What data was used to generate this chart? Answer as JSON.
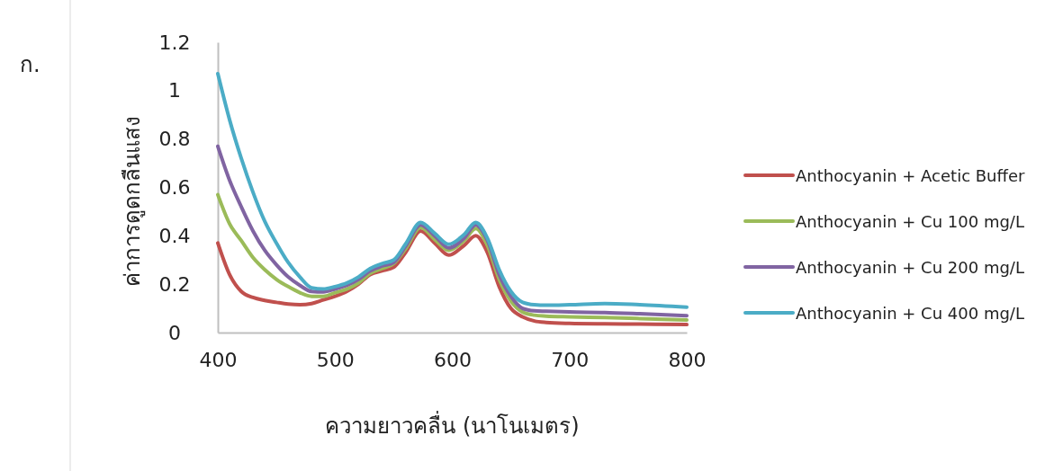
{
  "chart_data": {
    "type": "line",
    "xlabel": "ความยาวคลื่น (นาโนเมตร)",
    "ylabel": "ค่าการดูดกลืนแสง",
    "annotations": [
      "ก."
    ],
    "x": [
      400,
      410,
      420,
      430,
      440,
      450,
      460,
      470,
      480,
      490,
      500,
      510,
      520,
      530,
      540,
      550,
      560,
      573,
      585,
      597,
      610,
      620,
      630,
      640,
      650,
      660,
      670,
      680,
      700,
      730,
      760,
      800
    ],
    "series": [
      {
        "name": "Anthocyanin + Acetic Buffer",
        "color": "#c0504d",
        "values": [
          0.37,
          0.24,
          0.17,
          0.145,
          0.133,
          0.125,
          0.118,
          0.115,
          0.12,
          0.135,
          0.15,
          0.17,
          0.2,
          0.24,
          0.255,
          0.27,
          0.33,
          0.42,
          0.37,
          0.32,
          0.36,
          0.4,
          0.33,
          0.19,
          0.1,
          0.065,
          0.048,
          0.042,
          0.038,
          0.036,
          0.035,
          0.033
        ]
      },
      {
        "name": "Anthocyanin + Cu 100 mg/L",
        "color": "#9bbb59",
        "values": [
          0.57,
          0.45,
          0.38,
          0.31,
          0.26,
          0.22,
          0.19,
          0.165,
          0.15,
          0.15,
          0.165,
          0.18,
          0.205,
          0.245,
          0.265,
          0.285,
          0.345,
          0.435,
          0.385,
          0.34,
          0.38,
          0.43,
          0.36,
          0.22,
          0.13,
          0.085,
          0.072,
          0.068,
          0.065,
          0.062,
          0.058,
          0.052
        ]
      },
      {
        "name": "Anthocyanin + Cu 200 mg/L",
        "color": "#8064a2",
        "values": [
          0.77,
          0.63,
          0.52,
          0.42,
          0.34,
          0.28,
          0.23,
          0.195,
          0.17,
          0.168,
          0.18,
          0.195,
          0.22,
          0.255,
          0.275,
          0.29,
          0.355,
          0.445,
          0.4,
          0.35,
          0.39,
          0.445,
          0.38,
          0.24,
          0.15,
          0.1,
          0.09,
          0.088,
          0.085,
          0.083,
          0.078,
          0.07
        ]
      },
      {
        "name": "Anthocyanin + Cu 400 mg/L",
        "color": "#4bacc6",
        "values": [
          1.07,
          0.88,
          0.72,
          0.58,
          0.46,
          0.37,
          0.29,
          0.23,
          0.185,
          0.18,
          0.19,
          0.205,
          0.23,
          0.265,
          0.285,
          0.3,
          0.365,
          0.455,
          0.41,
          0.365,
          0.405,
          0.455,
          0.39,
          0.26,
          0.17,
          0.125,
          0.115,
          0.113,
          0.115,
          0.12,
          0.115,
          0.105
        ]
      }
    ],
    "xlim": [
      400,
      800
    ],
    "xticks": [
      400,
      500,
      600,
      700,
      800
    ],
    "ylim": [
      0,
      1.2
    ],
    "yticks": [
      0,
      0.2,
      0.4,
      0.6,
      0.8,
      1,
      1.2
    ],
    "grid": false,
    "legend": "right",
    "marker": "none",
    "line_style": "solid"
  }
}
